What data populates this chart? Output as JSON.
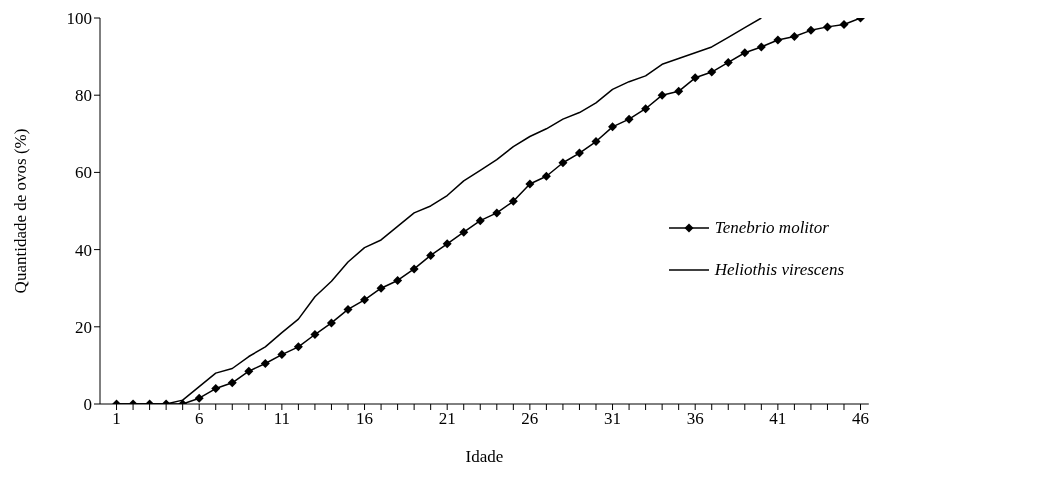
{
  "chart_data": {
    "type": "line",
    "xlabel": "Idade",
    "ylabel": "Quantidade de ovos (%)",
    "x": [
      1,
      2,
      3,
      4,
      5,
      6,
      7,
      8,
      9,
      10,
      11,
      12,
      13,
      14,
      15,
      16,
      17,
      18,
      19,
      20,
      21,
      22,
      23,
      24,
      25,
      26,
      27,
      28,
      29,
      30,
      31,
      32,
      33,
      34,
      35,
      36,
      37,
      38,
      39,
      40,
      41,
      42,
      43,
      44,
      45,
      46
    ],
    "xlim": [
      0,
      46.5
    ],
    "xticks": [
      1,
      {
        "value": 2,
        "label": null
      },
      {
        "value": 3,
        "label": null
      },
      {
        "value": 4,
        "label": null
      },
      {
        "value": 5,
        "label": null
      },
      6,
      {
        "value": 7,
        "label": null
      },
      {
        "value": 8,
        "label": null
      },
      {
        "value": 9,
        "label": null
      },
      {
        "value": 10,
        "label": null
      },
      11,
      {
        "value": 12,
        "label": null
      },
      {
        "value": 13,
        "label": null
      },
      {
        "value": 14,
        "label": null
      },
      {
        "value": 15,
        "label": null
      },
      16,
      {
        "value": 17,
        "label": null
      },
      {
        "value": 18,
        "label": null
      },
      {
        "value": 19,
        "label": null
      },
      {
        "value": 20,
        "label": null
      },
      21,
      {
        "value": 22,
        "label": null
      },
      {
        "value": 23,
        "label": null
      },
      {
        "value": 24,
        "label": null
      },
      {
        "value": 25,
        "label": null
      },
      26,
      {
        "value": 27,
        "label": null
      },
      {
        "value": 28,
        "label": null
      },
      {
        "value": 29,
        "label": null
      },
      {
        "value": 30,
        "label": null
      },
      31,
      {
        "value": 32,
        "label": null
      },
      {
        "value": 33,
        "label": null
      },
      {
        "value": 34,
        "label": null
      },
      {
        "value": 35,
        "label": null
      },
      36,
      {
        "value": 37,
        "label": null
      },
      {
        "value": 38,
        "label": null
      },
      {
        "value": 39,
        "label": null
      },
      {
        "value": 40,
        "label": null
      },
      41,
      {
        "value": 42,
        "label": null
      },
      {
        "value": 43,
        "label": null
      },
      {
        "value": 44,
        "label": null
      },
      {
        "value": 45,
        "label": null
      },
      46
    ],
    "ylim": [
      0,
      100
    ],
    "yticks": [
      0,
      20,
      40,
      60,
      80,
      100
    ],
    "grid": false,
    "legend": "right",
    "line_style": "solid",
    "series": [
      {
        "name": "Tenebrio molitor",
        "color": "#000000",
        "marker": "diamond",
        "values": [
          0,
          0,
          0,
          0,
          0,
          1.5,
          4,
          5.5,
          8.5,
          10.5,
          12.8,
          14.8,
          18,
          21,
          24.5,
          27,
          30,
          32,
          35,
          38.5,
          41.5,
          44.5,
          47.5,
          49.5,
          52.5,
          57,
          59,
          62.5,
          65,
          68,
          71.8,
          73.8,
          76.5,
          80,
          81,
          84.5,
          86,
          88.5,
          91,
          92.5,
          94.3,
          95.2,
          96.8,
          97.7,
          98.3,
          100
        ]
      },
      {
        "name": "Heliothis virescens",
        "color": "#000000",
        "marker": "none",
        "values": [
          0,
          0,
          0,
          0,
          1,
          4.5,
          8,
          9.2,
          12.3,
          14.8,
          18.5,
          22,
          27.8,
          31.8,
          36.8,
          40.5,
          42.5,
          46,
          49.5,
          51.3,
          54,
          57.8,
          60.5,
          63.3,
          66.7,
          69.3,
          71.3,
          73.8,
          75.5,
          78,
          81.5,
          83.5,
          85,
          88,
          89.5,
          91,
          92.5,
          95,
          97.5,
          100,
          null,
          null,
          null,
          null,
          null,
          null
        ]
      }
    ]
  }
}
